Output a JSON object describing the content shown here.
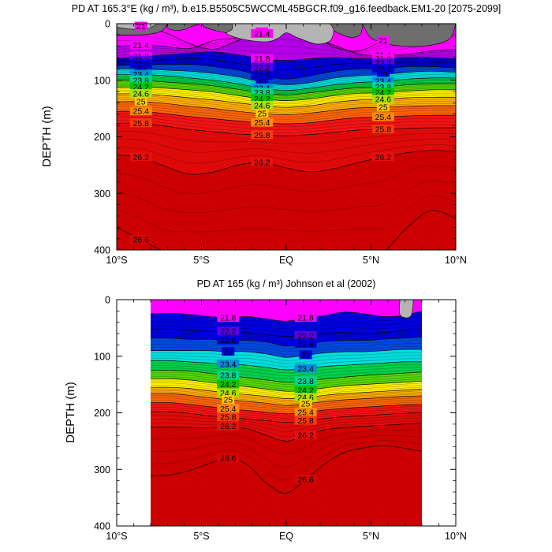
{
  "chart_data": [
    {
      "type": "contour",
      "title": "PD AT 165.3°E (kg / m³), b.e15.B5505C5WCCML45BGCR.f09_g16.feedback.EM1-20 [2075-2099]",
      "xlabel": "",
      "ylabel": "DEPTH (m)",
      "x_tick_labels": [
        "10°S",
        "5°S",
        "EQ",
        "5°N",
        "10°N"
      ],
      "y_tick_labels": [
        "0",
        "100",
        "200",
        "300",
        "400"
      ],
      "xlim": [
        -10,
        10
      ],
      "ylim": [
        400,
        0
      ],
      "x_values": [
        -10,
        -5,
        0,
        5,
        10
      ],
      "y_values": [
        0,
        100,
        200,
        300,
        400
      ],
      "data_extent_x": [
        -10,
        10
      ],
      "isopycnals": [
        {
          "level": 21.0,
          "depths": [
            2,
            5,
            16,
            35,
            45,
            30,
            15,
            10,
            18,
            42,
            48,
            30,
            12,
            3,
            2
          ]
        },
        {
          "level": 21.4,
          "depths": [
            40,
            38,
            40,
            44,
            30,
            25,
            18,
            15,
            25,
            38,
            54,
            56,
            54,
            48,
            45
          ]
        },
        {
          "level": 21.8,
          "depths": [
            62,
            58,
            55,
            52,
            50,
            55,
            62,
            65,
            62,
            60,
            62,
            62,
            60,
            60,
            62
          ]
        },
        {
          "level": 22.2,
          "depths": [
            68,
            65,
            64,
            62,
            64,
            70,
            78,
            82,
            78,
            72,
            70,
            70,
            68,
            68,
            70
          ]
        },
        {
          "level": 22.6,
          "depths": [
            74,
            72,
            72,
            72,
            76,
            82,
            92,
            98,
            92,
            84,
            80,
            80,
            76,
            76,
            78
          ]
        },
        {
          "level": 23.0,
          "depths": [
            80,
            80,
            82,
            84,
            88,
            94,
            103,
            108,
            104,
            96,
            92,
            90,
            86,
            84,
            86
          ]
        },
        {
          "level": 23.4,
          "depths": [
            90,
            90,
            92,
            96,
            100,
            106,
            114,
            118,
            114,
            108,
            104,
            102,
            98,
            96,
            96
          ]
        },
        {
          "level": 23.8,
          "depths": [
            100,
            100,
            103,
            106,
            110,
            116,
            122,
            126,
            122,
            117,
            113,
            112,
            108,
            106,
            106
          ]
        },
        {
          "level": 24.2,
          "depths": [
            112,
            112,
            114,
            117,
            121,
            127,
            133,
            136,
            133,
            127,
            123,
            122,
            119,
            117,
            117
          ]
        },
        {
          "level": 24.6,
          "depths": [
            124,
            124,
            127,
            131,
            135,
            140,
            145,
            148,
            145,
            139,
            135,
            134,
            131,
            130,
            130
          ]
        },
        {
          "level": 25.0,
          "depths": [
            138,
            138,
            141,
            146,
            150,
            155,
            159,
            161,
            158,
            153,
            149,
            148,
            146,
            145,
            145
          ]
        },
        {
          "level": 25.4,
          "depths": [
            155,
            155,
            159,
            164,
            168,
            172,
            175,
            177,
            175,
            170,
            166,
            165,
            163,
            162,
            162
          ]
        },
        {
          "level": 25.8,
          "depths": [
            176,
            176,
            181,
            187,
            191,
            195,
            197,
            198,
            196,
            192,
            188,
            187,
            185,
            184,
            184
          ]
        },
        {
          "level": 26.2,
          "depths": [
            232,
            236,
            252,
            266,
            262,
            250,
            245,
            255,
            262,
            256,
            245,
            236,
            228,
            224,
            226
          ]
        },
        {
          "level": 26.6,
          "depths": [
            360,
            382,
            402,
            402,
            402,
            402,
            402,
            402,
            402,
            402,
            402,
            402,
            360,
            330,
            345
          ]
        }
      ],
      "contour_labels": [
        "21.4",
        "21",
        "21.4",
        "21.8",
        "22.2",
        "22.6",
        "23",
        "23.4",
        "23.8",
        "24.2",
        "24.6",
        "25",
        "25.4",
        "25.8",
        "26.2",
        "26.6"
      ]
    },
    {
      "type": "contour",
      "title": "PD AT 165 (kg / m³) Johnson et al (2002)",
      "xlabel": "",
      "ylabel": "DEPTH (m)",
      "x_tick_labels": [
        "10°S",
        "5°S",
        "EQ",
        "5°N",
        "10°N"
      ],
      "y_tick_labels": [
        "0",
        "100",
        "200",
        "300",
        "400"
      ],
      "xlim": [
        -10,
        10
      ],
      "ylim": [
        400,
        0
      ],
      "x_values": [
        -10,
        -5,
        0,
        5,
        10
      ],
      "y_values": [
        0,
        100,
        200,
        300,
        400
      ],
      "data_extent_x": [
        -8,
        8
      ],
      "isopycnals": [
        {
          "level": 21.8,
          "depths": [
            25,
            24,
            26,
            30,
            32,
            30,
            34,
            38,
            32,
            28,
            22,
            25,
            30,
            28,
            20
          ]
        },
        {
          "level": 22.2,
          "depths": [
            52,
            52,
            54,
            56,
            56,
            58,
            62,
            65,
            64,
            60,
            58,
            60,
            58,
            55,
            52
          ]
        },
        {
          "level": 22.6,
          "depths": [
            68,
            68,
            70,
            70,
            72,
            72,
            75,
            82,
            78,
            74,
            72,
            72,
            70,
            68,
            66
          ]
        },
        {
          "level": 23.0,
          "depths": [
            90,
            90,
            90,
            90,
            92,
            92,
            96,
            102,
            98,
            94,
            92,
            92,
            90,
            88,
            88
          ]
        },
        {
          "level": 23.4,
          "depths": [
            108,
            108,
            110,
            112,
            114,
            116,
            120,
            124,
            122,
            118,
            116,
            114,
            112,
            110,
            110
          ]
        },
        {
          "level": 23.8,
          "depths": [
            125,
            125,
            126,
            130,
            134,
            138,
            142,
            146,
            144,
            140,
            137,
            134,
            132,
            130,
            128
          ]
        },
        {
          "level": 24.2,
          "depths": [
            140,
            140,
            142,
            146,
            150,
            154,
            158,
            162,
            160,
            156,
            152,
            150,
            148,
            146,
            144
          ]
        },
        {
          "level": 24.6,
          "depths": [
            155,
            155,
            157,
            161,
            165,
            168,
            171,
            175,
            173,
            169,
            166,
            164,
            162,
            160,
            158
          ]
        },
        {
          "level": 25.0,
          "depths": [
            166,
            166,
            169,
            173,
            177,
            180,
            183,
            187,
            184,
            180,
            177,
            175,
            173,
            171,
            170
          ]
        },
        {
          "level": 25.4,
          "depths": [
            182,
            182,
            185,
            189,
            193,
            196,
            199,
            202,
            199,
            195,
            192,
            190,
            188,
            186,
            185
          ]
        },
        {
          "level": 25.8,
          "depths": [
            198,
            198,
            201,
            205,
            208,
            211,
            214,
            217,
            214,
            210,
            207,
            205,
            203,
            201,
            200
          ]
        },
        {
          "level": 26.2,
          "depths": [
            225,
            225,
            226,
            226,
            224,
            228,
            240,
            250,
            240,
            230,
            226,
            224,
            222,
            220,
            218
          ]
        },
        {
          "level": 26.6,
          "depths": [
            312,
            310,
            302,
            290,
            280,
            292,
            325,
            342,
            318,
            290,
            270,
            262,
            258,
            262,
            268
          ]
        }
      ],
      "contour_labels": [
        "21.8",
        "22.2",
        "22.2",
        "22.6",
        "22.6",
        "23",
        "23",
        "23.4",
        "23.4",
        "23.8",
        "23.8",
        "24.2",
        "24.2",
        "24.6",
        "24.6",
        "25",
        "25",
        "25.4",
        "25.4",
        "25.8",
        "25.8",
        "26.2",
        "26.2",
        "26.6",
        "26.6"
      ]
    }
  ],
  "colors": {
    "land_dark": "#6e6e6e",
    "land_light": "#b4b4b4",
    "magenta": "#ff00ff",
    "violet": "#b400e6",
    "blue": "#0000dc",
    "cyan": "#00dcdc",
    "green": "#00c800",
    "yellow": "#ffee00",
    "orange": "#ff8c00",
    "red": "#f01414",
    "dark_red": "#cc0000"
  }
}
